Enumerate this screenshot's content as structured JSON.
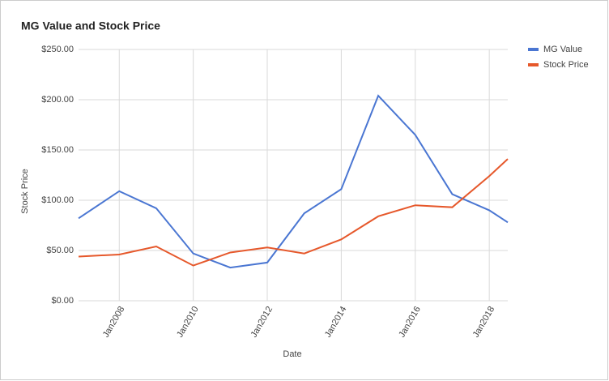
{
  "chart_data": {
    "type": "line",
    "title": "MG Value and Stock Price",
    "x_label": "Date",
    "y_label": "Stock Price",
    "x": [
      2006.9,
      2008,
      2009,
      2010,
      2011,
      2012,
      2013,
      2014,
      2015,
      2016,
      2017,
      2018,
      2018.5
    ],
    "series": [
      {
        "name": "MG Value",
        "color": "#4a76d2",
        "values": [
          82,
          109,
          92,
          47,
          33,
          38,
          87,
          111,
          204,
          165,
          106,
          90,
          78
        ]
      },
      {
        "name": "Stock Price",
        "color": "#e6582b",
        "values": [
          44,
          46,
          54,
          35,
          48,
          53,
          47,
          61,
          84,
          95,
          93,
          124,
          141
        ]
      }
    ],
    "xlim": [
      2006.9,
      2018.5
    ],
    "xticks": [
      {
        "value": 2008,
        "label": "Jan2008"
      },
      {
        "value": 2010,
        "label": "Jan2010"
      },
      {
        "value": 2012,
        "label": "Jan2012"
      },
      {
        "value": 2014,
        "label": "Jan2014"
      },
      {
        "value": 2016,
        "label": "Jan2016"
      },
      {
        "value": 2018,
        "label": "Jan2018"
      }
    ],
    "ylim": [
      0,
      250
    ],
    "yticks": [
      {
        "value": 0,
        "label": "$0.00"
      },
      {
        "value": 50,
        "label": "$50.00"
      },
      {
        "value": 100,
        "label": "$100.00"
      },
      {
        "value": 150,
        "label": "$150.00"
      },
      {
        "value": 200,
        "label": "$200.00"
      },
      {
        "value": 250,
        "label": "$250.00"
      }
    ],
    "grid": true,
    "legend": "right"
  }
}
